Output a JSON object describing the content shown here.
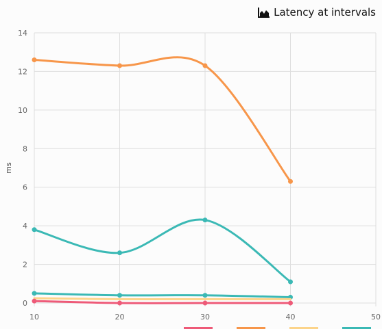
{
  "header": {
    "title": "Latency at intervals",
    "icon": "area-chart-icon"
  },
  "chart_data": {
    "type": "line",
    "title": "Latency at intervals",
    "xlabel": "",
    "ylabel": "ms",
    "x": [
      10,
      20,
      30,
      40
    ],
    "xlim": [
      10,
      50
    ],
    "ylim": [
      0,
      14
    ],
    "xticks": [
      10,
      20,
      30,
      40,
      50
    ],
    "yticks": [
      0,
      2,
      4,
      6,
      8,
      10,
      12,
      14
    ],
    "grid": true,
    "legend": "bottom",
    "series": [
      {
        "values": [
          12.6,
          12.3,
          12.3,
          6.3
        ],
        "color": "#f7964a",
        "markers": true
      },
      {
        "values": [
          3.8,
          2.6,
          4.3,
          1.1
        ],
        "color": "#3bb9b5",
        "markers": true
      },
      {
        "values": [
          0.5,
          0.4,
          0.4,
          0.3
        ],
        "color": "#3bb9b5",
        "markers": true
      },
      {
        "values": [
          0.25,
          0.2,
          0.2,
          0.2
        ],
        "color": "#fcd48a",
        "markers": false
      },
      {
        "values": [
          0.1,
          0.0,
          0.0,
          0.0
        ],
        "color": "#ee5a78",
        "markers": true
      }
    ],
    "legend_swatches": [
      "#ee5a78",
      "#f7964a",
      "#fcd48a",
      "#3bb9b5"
    ]
  }
}
